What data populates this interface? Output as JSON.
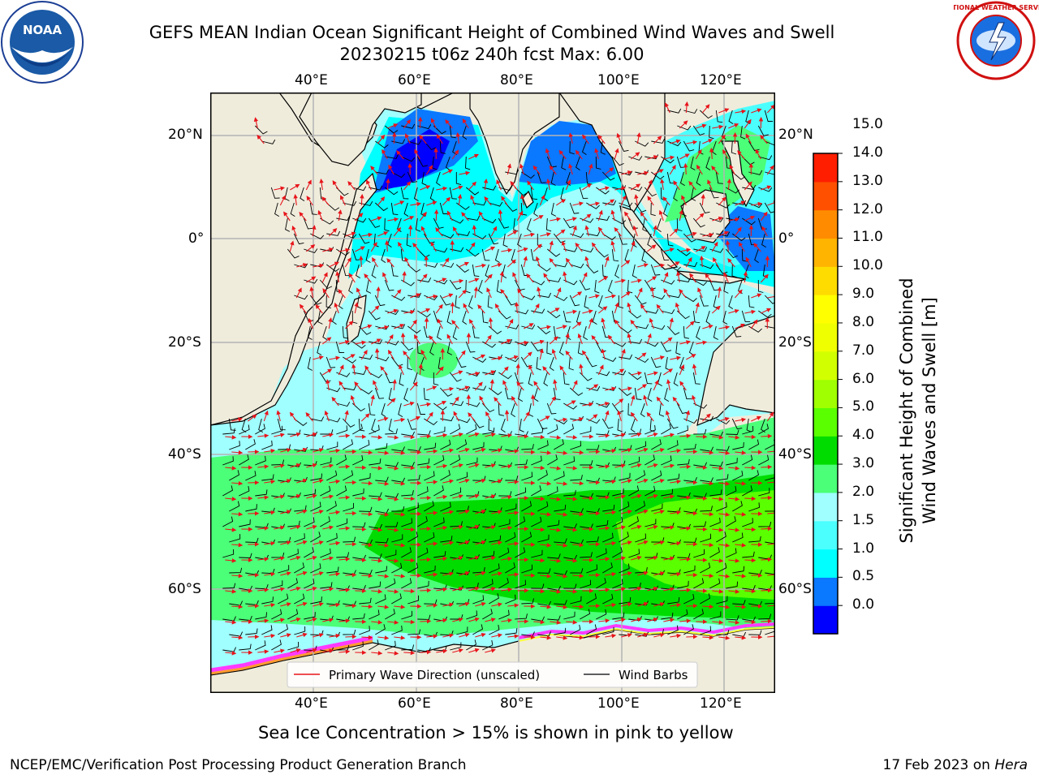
{
  "title": {
    "line1": "GEFS MEAN Indian Ocean Significant Height of Combined Wind Waves and Swell",
    "line2": "20230215 t06z 240h fcst   Max: 6.00"
  },
  "logos": {
    "left": {
      "icon": "noaa-logo",
      "text": "NOAA"
    },
    "right": {
      "icon": "nws-logo",
      "text": "NATIONAL WEATHER SERVICE"
    }
  },
  "map": {
    "lon_ticks": [
      "40°E",
      "60°E",
      "80°E",
      "100°E",
      "120°E"
    ],
    "lat_ticks": [
      "20°N",
      "0°",
      "20°S",
      "40°S",
      "60°S"
    ],
    "colors": {
      "land": "#efecdc",
      "grid": "#b4b4b4",
      "wave_arrows": "#e8141a",
      "wind_barbs": "#000000",
      "sea_ice": [
        "#ff3aff",
        "#ff9a30",
        "#ffff3a"
      ]
    },
    "legend": {
      "wave": "Primary Wave Direction (unscaled)",
      "wind": "Wind Barbs"
    }
  },
  "colorbar": {
    "label_line1": "Significant Height of Combined",
    "label_line2": "Wind Waves and Swell [m]",
    "tick_labels": [
      "0.0",
      "0.5",
      "1.0",
      "1.5",
      "2.0",
      "3.0",
      "4.0",
      "5.0",
      "6.0",
      "7.0",
      "8.0",
      "9.0",
      "10.0",
      "11.0",
      "12.0",
      "13.0",
      "14.0",
      "15.0"
    ],
    "colors": [
      "#0000ff",
      "#0a78ff",
      "#00ffff",
      "#4bffff",
      "#a0ffff",
      "#4bff78",
      "#00dc00",
      "#5aff00",
      "#a0ff00",
      "#d2ff00",
      "#f0ff00",
      "#ffff00",
      "#ffdc00",
      "#ffb400",
      "#ff8c00",
      "#ff5000",
      "#ff1e00"
    ]
  },
  "caption": "Sea Ice Concentration > 15% is shown in pink to yellow",
  "footer": {
    "left": "NCEP/EMC/Verification Post Processing Product Generation Branch",
    "right_date": "17 Feb 2023 on ",
    "right_host": "Hera"
  }
}
